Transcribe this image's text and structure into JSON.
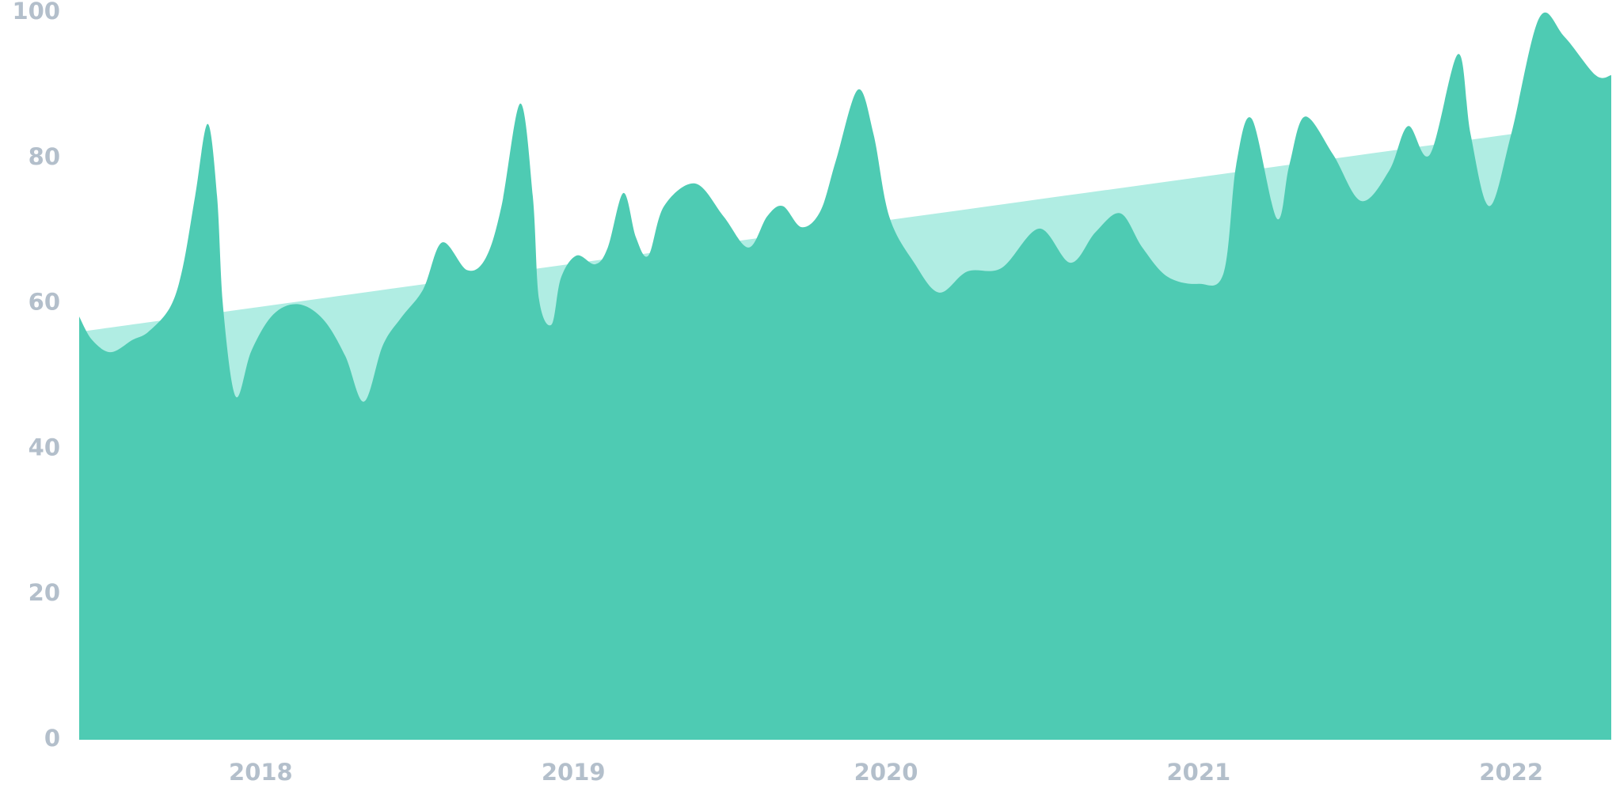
{
  "chart_data": {
    "type": "area",
    "xlim": [
      2017.419,
      2022.32
    ],
    "xticks": [
      2018,
      2019,
      2020,
      2021,
      2022
    ],
    "ylim": [
      0,
      100
    ],
    "yticks": [
      0,
      20,
      40,
      60,
      80,
      100
    ],
    "series": [
      {
        "color": "#b0ede3",
        "x": [
          2017.419,
          2022.32
        ],
        "values": [
          56.1,
          85.2
        ]
      },
      {
        "color": "#4ecbb3",
        "x": [
          2017.419,
          2017.46,
          2017.52,
          2017.59,
          2017.64,
          2017.71,
          2017.75,
          2017.79,
          2017.83,
          2017.86,
          2017.88,
          2017.92,
          2017.97,
          2018.04,
          2018.12,
          2018.2,
          2018.27,
          2018.33,
          2018.39,
          2018.45,
          2018.52,
          2018.58,
          2018.66,
          2018.72,
          2018.77,
          2018.83,
          2018.87,
          2018.89,
          2018.93,
          2018.96,
          2019.01,
          2019.07,
          2019.11,
          2019.16,
          2019.2,
          2019.24,
          2019.29,
          2019.39,
          2019.48,
          2019.56,
          2019.62,
          2019.67,
          2019.73,
          2019.79,
          2019.84,
          2019.91,
          2019.96,
          2020.01,
          2020.09,
          2020.17,
          2020.26,
          2020.37,
          2020.49,
          2020.59,
          2020.67,
          2020.75,
          2020.82,
          2020.9,
          2021.0,
          2021.08,
          2021.12,
          2021.17,
          2021.25,
          2021.29,
          2021.34,
          2021.43,
          2021.52,
          2021.61,
          2021.67,
          2021.74,
          2021.83,
          2021.87,
          2021.93,
          2022.0,
          2022.09,
          2022.17,
          2022.27,
          2022.32
        ],
        "values": [
          58.2,
          55.0,
          53.3,
          55.0,
          56.1,
          59.5,
          64.9,
          74.8,
          84.7,
          74.8,
          59.2,
          47.2,
          53.5,
          58.5,
          59.9,
          57.8,
          52.8,
          46.5,
          54.2,
          58.1,
          62.0,
          68.4,
          64.6,
          66.3,
          73.4,
          87.5,
          74.8,
          60.6,
          57.1,
          63.5,
          66.6,
          65.4,
          67.7,
          75.2,
          69.1,
          66.6,
          73.4,
          76.5,
          72.0,
          67.7,
          72.0,
          73.4,
          70.5,
          72.7,
          79.7,
          89.4,
          83.3,
          72.0,
          65.6,
          61.5,
          64.4,
          64.9,
          70.3,
          65.6,
          69.8,
          72.4,
          67.7,
          63.7,
          62.7,
          64.2,
          79.0,
          85.4,
          71.7,
          79.0,
          85.7,
          80.5,
          74.1,
          78.3,
          84.4,
          80.5,
          94.3,
          83.3,
          73.4,
          83.3,
          99.3,
          96.7,
          91.4,
          91.4
        ]
      }
    ]
  }
}
